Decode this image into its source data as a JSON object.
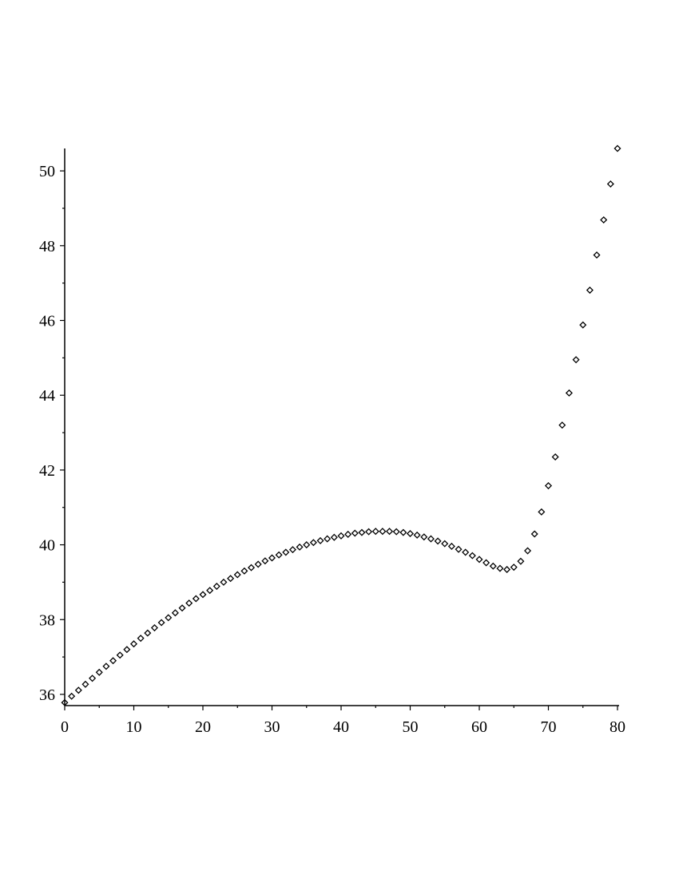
{
  "chart_data": {
    "type": "scatter",
    "title": "",
    "xlabel": "",
    "ylabel": "",
    "xlim": [
      0,
      80
    ],
    "ylim": [
      35.7,
      50.6
    ],
    "grid": false,
    "marker": "diamond",
    "marker_color": "#000000",
    "x_ticks": [
      0,
      10,
      20,
      30,
      40,
      50,
      60,
      70,
      80
    ],
    "x_tick_labels": [
      "0",
      "10",
      "20",
      "30",
      "40",
      "50",
      "60",
      "70",
      "80"
    ],
    "y_ticks": [
      36,
      38,
      40,
      42,
      44,
      46,
      48,
      50
    ],
    "y_tick_labels": [
      "36",
      "38",
      "40",
      "42",
      "44",
      "46",
      "48",
      "50"
    ],
    "x": [
      0,
      1,
      2,
      3,
      4,
      5,
      6,
      7,
      8,
      9,
      10,
      11,
      12,
      13,
      14,
      15,
      16,
      17,
      18,
      19,
      20,
      21,
      22,
      23,
      24,
      25,
      26,
      27,
      28,
      29,
      30,
      31,
      32,
      33,
      34,
      35,
      36,
      37,
      38,
      39,
      40,
      41,
      42,
      43,
      44,
      45,
      46,
      47,
      48,
      49,
      50,
      51,
      52,
      53,
      54,
      55,
      56,
      57,
      58,
      59,
      60,
      61,
      62,
      63,
      64,
      65,
      66,
      67,
      68,
      69,
      70,
      71,
      72,
      73,
      74,
      75,
      76,
      77,
      78,
      79,
      80
    ],
    "y": [
      35.78,
      35.95,
      36.11,
      36.27,
      36.43,
      36.59,
      36.75,
      36.9,
      37.05,
      37.2,
      37.35,
      37.5,
      37.64,
      37.78,
      37.92,
      38.05,
      38.18,
      38.31,
      38.44,
      38.56,
      38.67,
      38.78,
      38.89,
      39.0,
      39.1,
      39.2,
      39.3,
      39.39,
      39.48,
      39.57,
      39.65,
      39.73,
      39.8,
      39.87,
      39.94,
      40.0,
      40.06,
      40.11,
      40.16,
      40.2,
      40.24,
      40.28,
      40.31,
      40.33,
      40.35,
      40.36,
      40.36,
      40.36,
      40.35,
      40.33,
      40.3,
      40.26,
      40.21,
      40.16,
      40.1,
      40.03,
      39.96,
      39.88,
      39.8,
      39.71,
      39.61,
      39.52,
      39.43,
      39.37,
      39.34,
      39.4,
      39.56,
      39.84,
      40.29,
      40.88,
      41.58,
      42.35,
      43.2,
      44.06,
      44.95,
      45.88,
      46.81,
      47.75,
      48.69,
      49.65,
      50.6
    ]
  }
}
